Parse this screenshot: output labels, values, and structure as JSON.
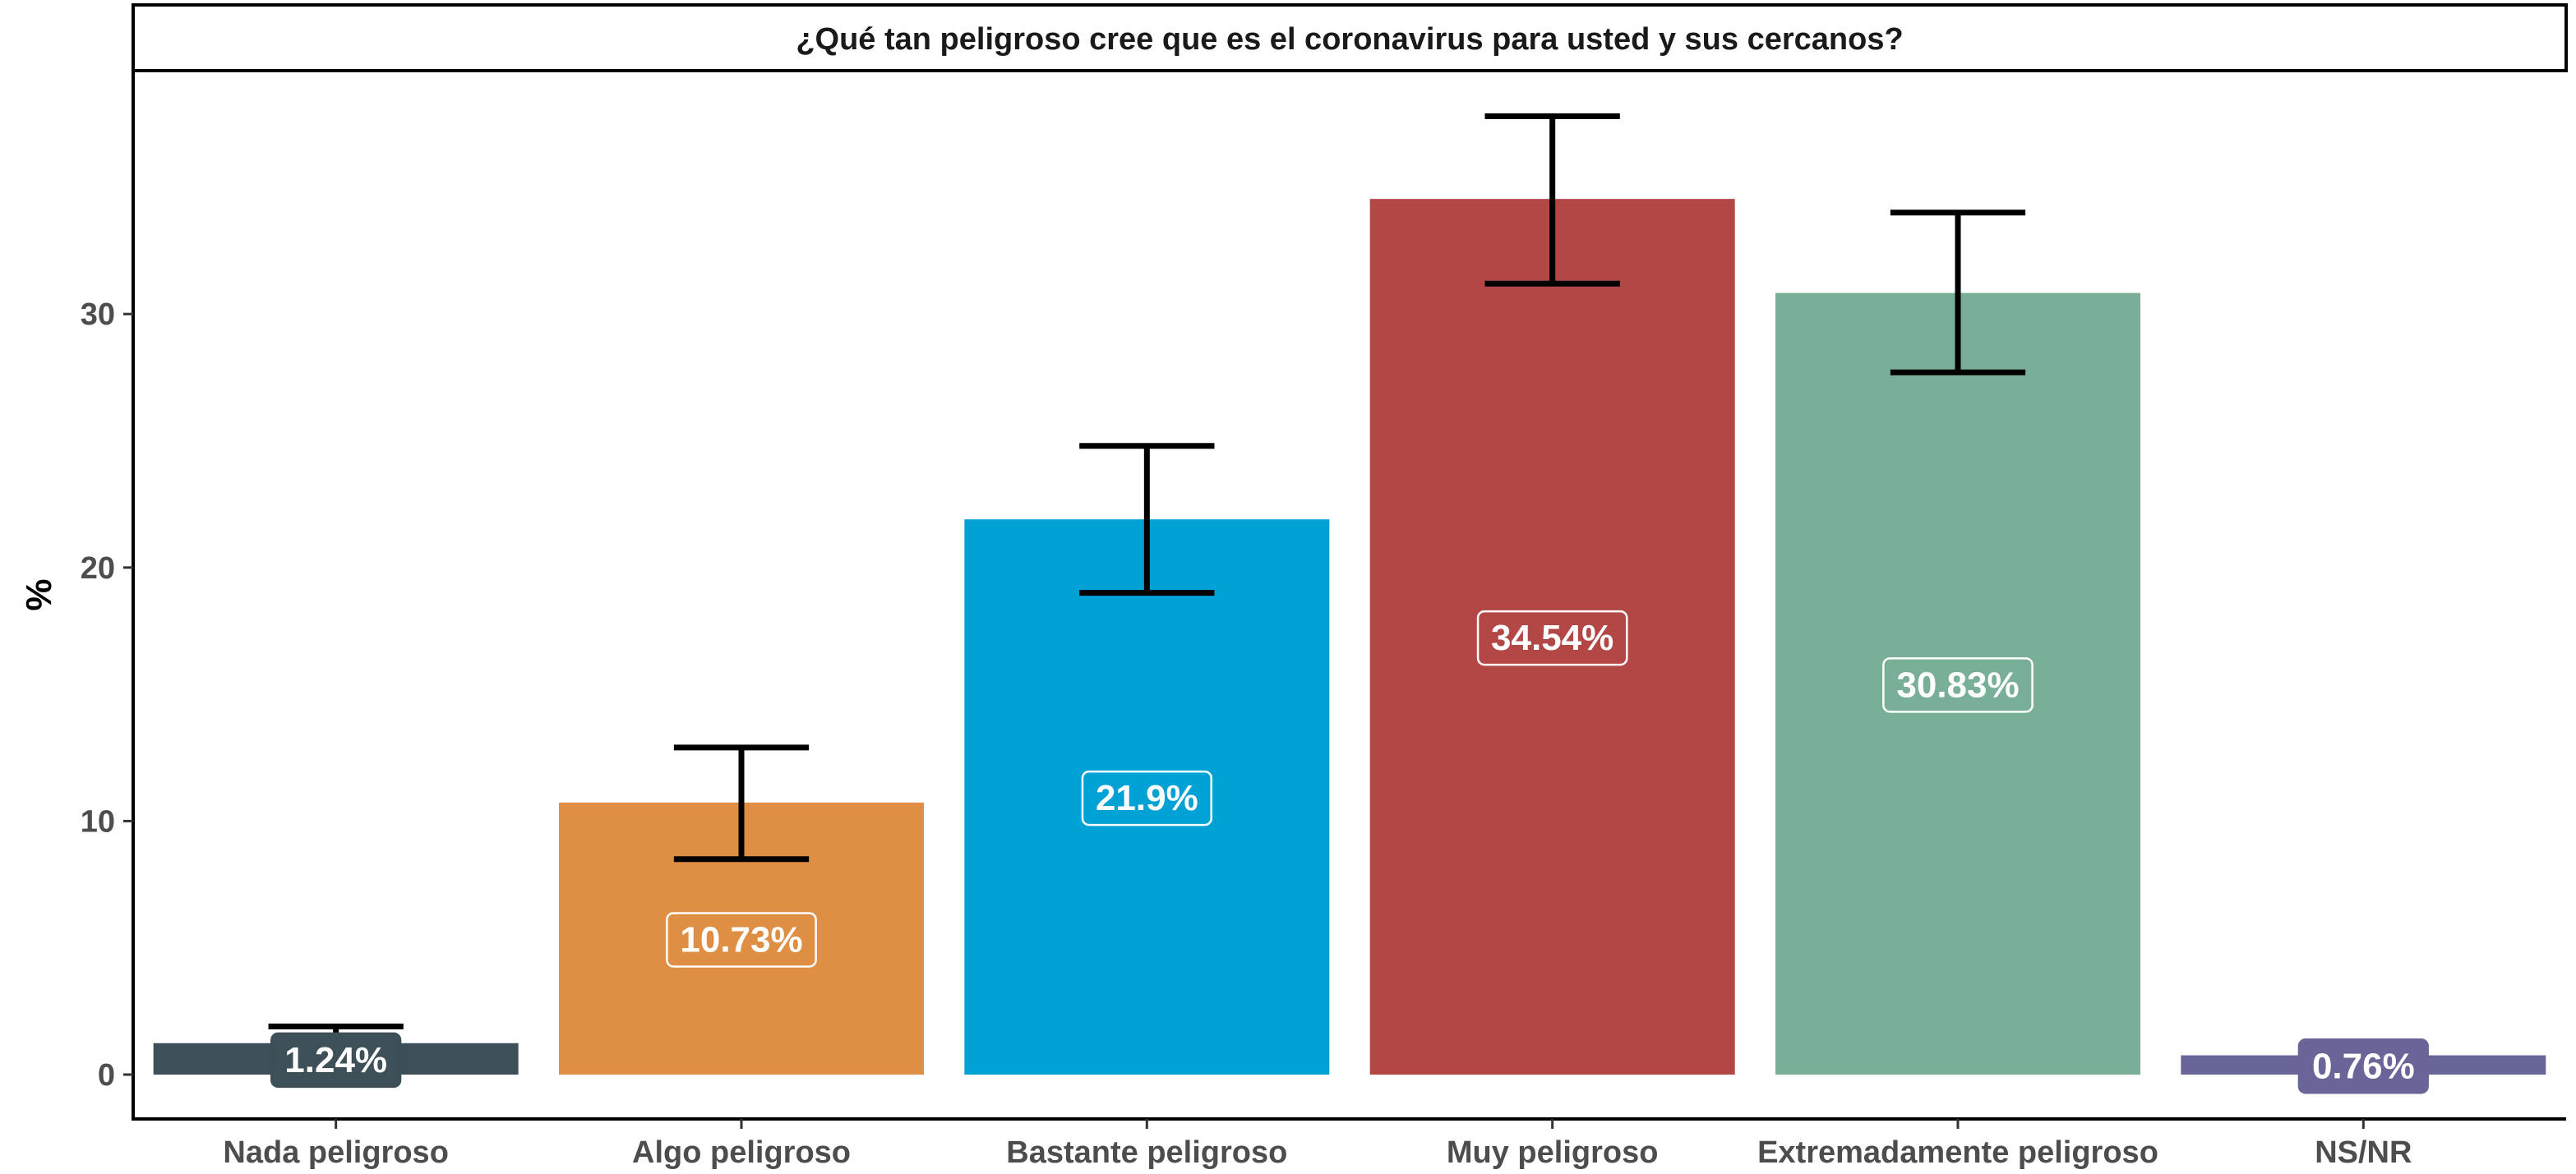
{
  "chart_data": {
    "type": "bar",
    "title": "¿Qué tan peligroso cree que es el coronavirus para usted y sus cercanos?",
    "xlabel": "",
    "ylabel": "%",
    "ylim": [
      -1.75,
      39.6
    ],
    "yticks": [
      0,
      10,
      20,
      30
    ],
    "grid": false,
    "legend": "none",
    "categories": [
      "Nada peligroso",
      "Algo peligroso",
      "Bastante peligroso",
      "Muy peligroso",
      "Extremadamente peligroso",
      "NS/NR"
    ],
    "values": [
      1.24,
      10.73,
      21.9,
      34.54,
      30.83,
      0.76
    ],
    "labels": [
      "1.24%",
      "10.73%",
      "21.9%",
      "34.54%",
      "30.83%",
      "0.76%"
    ],
    "error_low": [
      null,
      8.5,
      19.0,
      31.2,
      27.7,
      null
    ],
    "error_high": [
      1.9,
      12.9,
      24.8,
      37.8,
      34.0,
      null
    ],
    "colors": [
      "#3d4f57",
      "#df8f44",
      "#00a1d5",
      "#b24745",
      "#79af97",
      "#6a6599"
    ]
  }
}
